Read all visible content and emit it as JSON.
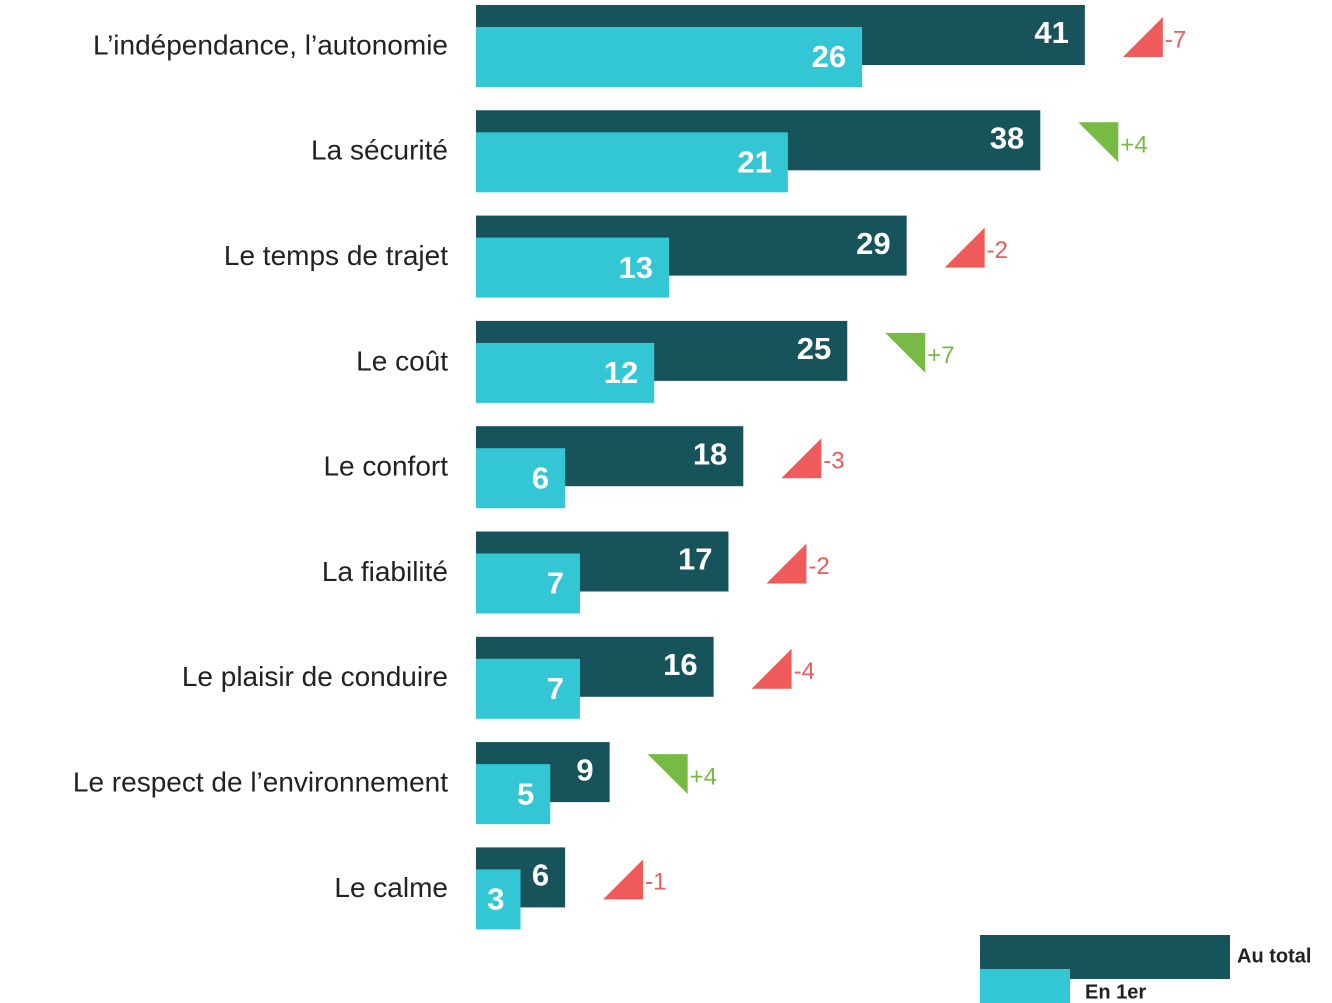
{
  "chart_data": {
    "type": "bar",
    "orientation": "horizontal",
    "categories": [
      "L’indépendance, l’autonomie",
      "La sécurité ",
      "Le temps de trajet",
      "Le coût",
      "Le confort",
      "La fiabilité",
      "Le plaisir de conduire",
      "Le respect de l’environnement",
      "Le calme"
    ],
    "series": [
      {
        "name": "Au total",
        "color": "#16535a",
        "values": [
          41,
          38,
          29,
          25,
          18,
          17,
          16,
          9,
          6
        ]
      },
      {
        "name": "En 1er",
        "color": "#33c6d4",
        "values": [
          26,
          21,
          13,
          12,
          6,
          7,
          7,
          5,
          3
        ]
      }
    ],
    "changes": {
      "values": [
        -7,
        4,
        -2,
        7,
        -3,
        -2,
        -4,
        4,
        -1
      ],
      "value_labels": [
        "-7",
        "+4",
        "-2",
        "+7",
        "-3",
        "-2",
        "-4",
        "+4",
        "-1"
      ],
      "up_color": "#77bb44",
      "down_color": "#ef5a5a"
    }
  }
}
